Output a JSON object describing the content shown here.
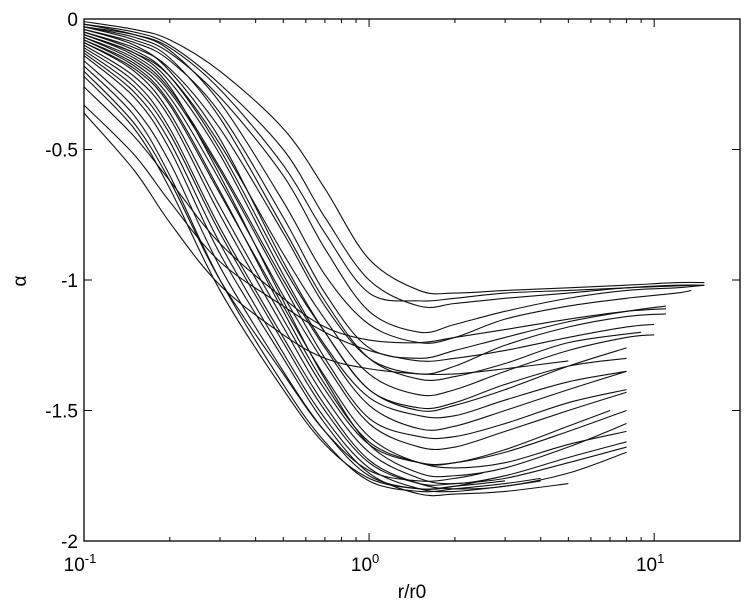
{
  "chart_data": {
    "type": "line",
    "title": "",
    "xlabel": "r/r0",
    "ylabel": "α",
    "xscale": "log",
    "xlim": [
      0.1,
      20
    ],
    "ylim": [
      -2,
      0
    ],
    "grid": false,
    "legend": "none",
    "line_color": "#111111",
    "x_ticks": [
      {
        "base": "10",
        "exp": "-1"
      },
      {
        "base": "10",
        "exp": "0"
      },
      {
        "base": "10",
        "exp": "1"
      }
    ],
    "y_ticks": [
      "0",
      "-0.5",
      "-1",
      "-1.5",
      "-2"
    ],
    "series": [
      {
        "x": [
          0.1,
          0.15,
          0.2,
          0.3,
          0.5,
          0.7,
          1.0,
          1.5,
          2.0,
          3.0,
          5.0,
          8.0,
          12.0,
          15.0
        ],
        "y": [
          -0.01,
          -0.04,
          -0.08,
          -0.2,
          -0.42,
          -0.65,
          -0.92,
          -1.04,
          -1.05,
          -1.04,
          -1.03,
          -1.02,
          -1.01,
          -1.01
        ]
      },
      {
        "x": [
          0.1,
          0.15,
          0.2,
          0.3,
          0.5,
          0.7,
          1.0,
          1.5,
          2.0,
          3.0,
          5.0,
          8.0,
          12.0,
          15.0
        ],
        "y": [
          -0.02,
          -0.05,
          -0.1,
          -0.25,
          -0.5,
          -0.76,
          -1.0,
          -1.1,
          -1.09,
          -1.07,
          -1.05,
          -1.03,
          -1.02,
          -1.02
        ]
      },
      {
        "x": [
          0.1,
          0.15,
          0.2,
          0.3,
          0.5,
          0.7,
          1.0,
          1.5,
          2.0,
          3.0,
          5.0,
          8.0,
          12.0,
          15.0
        ],
        "y": [
          -0.03,
          -0.07,
          -0.13,
          -0.3,
          -0.6,
          -0.88,
          -1.12,
          -1.2,
          -1.17,
          -1.12,
          -1.07,
          -1.04,
          -1.03,
          -1.02
        ]
      },
      {
        "x": [
          0.1,
          0.15,
          0.2,
          0.3,
          0.5,
          0.7,
          1.0,
          1.5,
          2.0,
          3.0,
          5.0,
          8.0,
          12.0,
          13.5
        ],
        "y": [
          -0.02,
          -0.06,
          -0.12,
          -0.32,
          -0.7,
          -0.98,
          -1.17,
          -1.24,
          -1.22,
          -1.15,
          -1.1,
          -1.07,
          -1.05,
          -1.04
        ]
      },
      {
        "x": [
          0.1,
          0.15,
          0.2,
          0.3,
          0.5,
          0.7,
          1.0,
          1.5,
          2.0,
          3.0,
          5.0,
          8.0,
          11.0
        ],
        "y": [
          -0.04,
          -0.09,
          -0.16,
          -0.36,
          -0.76,
          -1.05,
          -1.26,
          -1.3,
          -1.27,
          -1.22,
          -1.16,
          -1.12,
          -1.1
        ]
      },
      {
        "x": [
          0.1,
          0.15,
          0.2,
          0.3,
          0.5,
          0.7,
          1.0,
          1.5,
          2.0,
          3.0,
          5.0,
          8.0,
          11.0
        ],
        "y": [
          -0.05,
          -0.11,
          -0.19,
          -0.42,
          -0.82,
          -1.1,
          -1.3,
          -1.36,
          -1.33,
          -1.25,
          -1.18,
          -1.14,
          -1.13
        ]
      },
      {
        "x": [
          0.1,
          0.15,
          0.2,
          0.3,
          0.5,
          0.7,
          1.0,
          1.5,
          2.0,
          3.0,
          5.0,
          8.0,
          10.0
        ],
        "y": [
          -0.06,
          -0.13,
          -0.22,
          -0.48,
          -0.9,
          -1.15,
          -1.36,
          -1.44,
          -1.42,
          -1.35,
          -1.27,
          -1.22,
          -1.21
        ]
      },
      {
        "x": [
          0.1,
          0.15,
          0.2,
          0.3,
          0.5,
          0.7,
          1.0,
          1.5,
          2.0,
          3.0,
          5.0,
          8.0
        ],
        "y": [
          -0.05,
          -0.12,
          -0.22,
          -0.5,
          -0.95,
          -1.2,
          -1.42,
          -1.5,
          -1.48,
          -1.42,
          -1.33,
          -1.26
        ]
      },
      {
        "x": [
          0.1,
          0.15,
          0.2,
          0.3,
          0.5,
          0.7,
          1.0,
          1.5,
          2.0,
          3.0,
          5.0,
          8.0
        ],
        "y": [
          -0.07,
          -0.15,
          -0.27,
          -0.57,
          -1.0,
          -1.26,
          -1.48,
          -1.57,
          -1.56,
          -1.5,
          -1.42,
          -1.35
        ]
      },
      {
        "x": [
          0.1,
          0.15,
          0.2,
          0.3,
          0.5,
          0.7,
          1.0,
          1.5,
          2.0,
          3.0,
          5.0,
          8.0
        ],
        "y": [
          -0.08,
          -0.17,
          -0.3,
          -0.62,
          -1.06,
          -1.32,
          -1.55,
          -1.64,
          -1.64,
          -1.58,
          -1.5,
          -1.43
        ]
      },
      {
        "x": [
          0.1,
          0.15,
          0.2,
          0.3,
          0.5,
          0.7,
          1.0,
          1.5,
          2.0,
          3.0,
          5.0,
          7.0
        ],
        "y": [
          -0.09,
          -0.19,
          -0.33,
          -0.67,
          -1.1,
          -1.37,
          -1.6,
          -1.7,
          -1.7,
          -1.65,
          -1.56,
          -1.5
        ]
      },
      {
        "x": [
          0.1,
          0.15,
          0.2,
          0.3,
          0.5,
          0.7,
          1.0,
          1.5,
          2.0,
          3.0,
          5.0,
          8.0
        ],
        "y": [
          -0.06,
          -0.14,
          -0.26,
          -0.6,
          -1.08,
          -1.38,
          -1.63,
          -1.74,
          -1.75,
          -1.72,
          -1.64,
          -1.55
        ]
      },
      {
        "x": [
          0.1,
          0.15,
          0.2,
          0.3,
          0.5,
          0.7,
          1.0,
          1.5,
          2.0,
          3.0,
          5.0,
          8.0
        ],
        "y": [
          -0.1,
          -0.22,
          -0.38,
          -0.75,
          -1.18,
          -1.45,
          -1.66,
          -1.76,
          -1.78,
          -1.75,
          -1.68,
          -1.62
        ]
      },
      {
        "x": [
          0.1,
          0.15,
          0.2,
          0.3,
          0.5,
          0.7,
          1.0,
          1.5,
          2.0,
          3.0,
          5.0,
          8.0
        ],
        "y": [
          -0.11,
          -0.24,
          -0.42,
          -0.8,
          -1.22,
          -1.48,
          -1.69,
          -1.78,
          -1.8,
          -1.79,
          -1.74,
          -1.66
        ]
      },
      {
        "x": [
          0.1,
          0.15,
          0.2,
          0.3,
          0.5,
          0.7,
          1.0,
          1.5,
          2.0,
          3.0,
          4.0
        ],
        "y": [
          -0.13,
          -0.28,
          -0.47,
          -0.86,
          -1.28,
          -1.53,
          -1.72,
          -1.8,
          -1.81,
          -1.79,
          -1.77
        ]
      },
      {
        "x": [
          0.1,
          0.15,
          0.2,
          0.3,
          0.5,
          0.7,
          1.0,
          1.5,
          2.0,
          3.0,
          5.0
        ],
        "y": [
          -0.14,
          -0.3,
          -0.5,
          -0.9,
          -1.3,
          -1.55,
          -1.74,
          -1.82,
          -1.82,
          -1.81,
          -1.78
        ]
      },
      {
        "x": [
          0.1,
          0.15,
          0.2,
          0.3,
          0.5,
          0.7,
          1.0,
          1.5,
          2.0,
          3.0
        ],
        "y": [
          -0.16,
          -0.34,
          -0.55,
          -0.95,
          -1.35,
          -1.58,
          -1.75,
          -1.8,
          -1.79,
          -1.75
        ]
      },
      {
        "x": [
          0.1,
          0.15,
          0.2,
          0.3,
          0.5,
          0.7,
          1.0,
          1.5,
          2.0,
          3.0,
          4.0
        ],
        "y": [
          -0.18,
          -0.37,
          -0.6,
          -1.0,
          -1.4,
          -1.62,
          -1.77,
          -1.81,
          -1.8,
          -1.78,
          -1.76
        ]
      },
      {
        "x": [
          0.1,
          0.15,
          0.2,
          0.3,
          0.5,
          0.7,
          1.0,
          1.5,
          2.0,
          3.0,
          5.0,
          8.0
        ],
        "y": [
          -0.09,
          -0.2,
          -0.36,
          -0.72,
          -1.15,
          -1.42,
          -1.63,
          -1.7,
          -1.7,
          -1.66,
          -1.58,
          -1.5
        ]
      },
      {
        "x": [
          0.1,
          0.15,
          0.2,
          0.3,
          0.5,
          0.7,
          1.0,
          1.5,
          2.0,
          3.0,
          5.0,
          8.0
        ],
        "y": [
          -0.04,
          -0.1,
          -0.2,
          -0.46,
          -0.93,
          -1.2,
          -1.42,
          -1.49,
          -1.47,
          -1.4,
          -1.33,
          -1.3
        ]
      },
      {
        "x": [
          0.1,
          0.15,
          0.2,
          0.3,
          0.5,
          0.7,
          1.0,
          1.5,
          2.0,
          3.0,
          5.0,
          9.0
        ],
        "y": [
          -0.03,
          -0.08,
          -0.15,
          -0.38,
          -0.8,
          -1.08,
          -1.3,
          -1.38,
          -1.37,
          -1.32,
          -1.24,
          -1.2
        ]
      },
      {
        "x": [
          0.1,
          0.15,
          0.2,
          0.3,
          0.5,
          0.7,
          1.0,
          1.5,
          2.0,
          3.0,
          5.0,
          8.0
        ],
        "y": [
          -0.07,
          -0.16,
          -0.28,
          -0.58,
          -1.02,
          -1.3,
          -1.53,
          -1.6,
          -1.6,
          -1.55,
          -1.47,
          -1.42
        ]
      },
      {
        "x": [
          0.1,
          0.15,
          0.2,
          0.3,
          0.5,
          0.7,
          1.0,
          1.5,
          2.0,
          3.0,
          5.0,
          8.0
        ],
        "y": [
          -0.08,
          -0.18,
          -0.32,
          -0.66,
          -1.12,
          -1.4,
          -1.62,
          -1.7,
          -1.72,
          -1.7,
          -1.63,
          -1.58
        ]
      },
      {
        "x": [
          0.1,
          0.15,
          0.2,
          0.3,
          0.5,
          0.7,
          1.0,
          1.5,
          2.0,
          3.0,
          5.0,
          8.0
        ],
        "y": [
          -0.06,
          -0.13,
          -0.24,
          -0.52,
          -0.98,
          -1.25,
          -1.45,
          -1.52,
          -1.52,
          -1.46,
          -1.39,
          -1.35
        ]
      },
      {
        "x": [
          0.1,
          0.15,
          0.2,
          0.3,
          0.5,
          0.7,
          1.0,
          1.5,
          2.0,
          3.0,
          5.0,
          8.0
        ],
        "y": [
          -0.12,
          -0.26,
          -0.44,
          -0.82,
          -1.24,
          -1.5,
          -1.7,
          -1.78,
          -1.78,
          -1.76,
          -1.7,
          -1.64
        ]
      },
      {
        "x": [
          0.1,
          0.15,
          0.2,
          0.3,
          0.5,
          0.7,
          1.0,
          1.5,
          2.0,
          2.5
        ],
        "y": [
          -0.2,
          -0.4,
          -0.62,
          -1.0,
          -1.36,
          -1.58,
          -1.73,
          -1.77,
          -1.76,
          -1.74
        ]
      },
      {
        "x": [
          0.1,
          0.15,
          0.2,
          0.3,
          0.5,
          0.7,
          1.0,
          1.5,
          2.0,
          3.0
        ],
        "y": [
          -0.22,
          -0.42,
          -0.65,
          -1.04,
          -1.42,
          -1.63,
          -1.76,
          -1.8,
          -1.79,
          -1.77
        ]
      },
      {
        "x": [
          0.1,
          0.15,
          0.2,
          0.3,
          0.5,
          0.7,
          1.0,
          1.5,
          2.0,
          3.0,
          5.0,
          8.0,
          11.0
        ],
        "y": [
          -0.26,
          -0.45,
          -0.62,
          -0.86,
          -1.07,
          -1.18,
          -1.23,
          -1.24,
          -1.22,
          -1.19,
          -1.15,
          -1.12,
          -1.11
        ]
      },
      {
        "x": [
          0.1,
          0.15,
          0.2,
          0.3,
          0.5,
          0.7,
          1.0,
          1.5,
          2.0,
          3.0,
          5.0,
          8.0,
          10.0
        ],
        "y": [
          -0.33,
          -0.52,
          -0.7,
          -0.93,
          -1.1,
          -1.2,
          -1.27,
          -1.31,
          -1.3,
          -1.27,
          -1.22,
          -1.18,
          -1.17
        ]
      },
      {
        "x": [
          0.1,
          0.15,
          0.2,
          0.3,
          0.5,
          0.7,
          1.0,
          1.5,
          2.0,
          3.0,
          5.0
        ],
        "y": [
          -0.36,
          -0.58,
          -0.78,
          -1.02,
          -1.21,
          -1.3,
          -1.34,
          -1.36,
          -1.36,
          -1.34,
          -1.31
        ]
      },
      {
        "x": [
          0.1,
          0.15,
          0.2,
          0.3,
          0.5,
          0.7,
          1.0,
          1.5,
          2.0,
          3.0,
          5.0,
          8.0,
          14.0
        ],
        "y": [
          -0.03,
          -0.06,
          -0.11,
          -0.27,
          -0.56,
          -0.82,
          -1.05,
          -1.08,
          -1.07,
          -1.05,
          -1.04,
          -1.03,
          -1.02
        ]
      }
    ]
  }
}
